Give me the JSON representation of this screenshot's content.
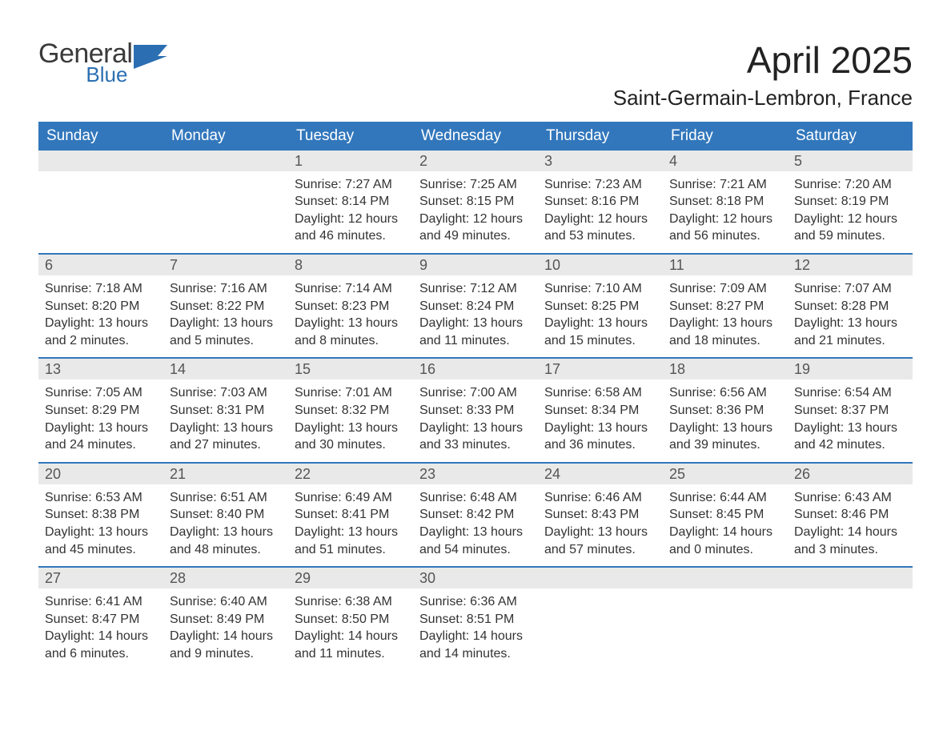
{
  "logo": {
    "line1": "General",
    "line2": "Blue",
    "text_color": "#3a3a3a",
    "accent_color": "#2b6fb2"
  },
  "header": {
    "month_title": "April 2025",
    "location": "Saint-Germain-Lembron, France"
  },
  "colors": {
    "header_bg": "#3277bc",
    "header_text": "#ffffff",
    "daynum_bg": "#e9e9e9",
    "week_border": "#3277bc",
    "body_text": "#333333",
    "page_bg": "#ffffff"
  },
  "weekdays": [
    "Sunday",
    "Monday",
    "Tuesday",
    "Wednesday",
    "Thursday",
    "Friday",
    "Saturday"
  ],
  "weeks": [
    [
      {
        "day": "",
        "sunrise": "",
        "sunset": "",
        "daylight": ""
      },
      {
        "day": "",
        "sunrise": "",
        "sunset": "",
        "daylight": ""
      },
      {
        "day": "1",
        "sunrise": "Sunrise: 7:27 AM",
        "sunset": "Sunset: 8:14 PM",
        "daylight": "Daylight: 12 hours and 46 minutes."
      },
      {
        "day": "2",
        "sunrise": "Sunrise: 7:25 AM",
        "sunset": "Sunset: 8:15 PM",
        "daylight": "Daylight: 12 hours and 49 minutes."
      },
      {
        "day": "3",
        "sunrise": "Sunrise: 7:23 AM",
        "sunset": "Sunset: 8:16 PM",
        "daylight": "Daylight: 12 hours and 53 minutes."
      },
      {
        "day": "4",
        "sunrise": "Sunrise: 7:21 AM",
        "sunset": "Sunset: 8:18 PM",
        "daylight": "Daylight: 12 hours and 56 minutes."
      },
      {
        "day": "5",
        "sunrise": "Sunrise: 7:20 AM",
        "sunset": "Sunset: 8:19 PM",
        "daylight": "Daylight: 12 hours and 59 minutes."
      }
    ],
    [
      {
        "day": "6",
        "sunrise": "Sunrise: 7:18 AM",
        "sunset": "Sunset: 8:20 PM",
        "daylight": "Daylight: 13 hours and 2 minutes."
      },
      {
        "day": "7",
        "sunrise": "Sunrise: 7:16 AM",
        "sunset": "Sunset: 8:22 PM",
        "daylight": "Daylight: 13 hours and 5 minutes."
      },
      {
        "day": "8",
        "sunrise": "Sunrise: 7:14 AM",
        "sunset": "Sunset: 8:23 PM",
        "daylight": "Daylight: 13 hours and 8 minutes."
      },
      {
        "day": "9",
        "sunrise": "Sunrise: 7:12 AM",
        "sunset": "Sunset: 8:24 PM",
        "daylight": "Daylight: 13 hours and 11 minutes."
      },
      {
        "day": "10",
        "sunrise": "Sunrise: 7:10 AM",
        "sunset": "Sunset: 8:25 PM",
        "daylight": "Daylight: 13 hours and 15 minutes."
      },
      {
        "day": "11",
        "sunrise": "Sunrise: 7:09 AM",
        "sunset": "Sunset: 8:27 PM",
        "daylight": "Daylight: 13 hours and 18 minutes."
      },
      {
        "day": "12",
        "sunrise": "Sunrise: 7:07 AM",
        "sunset": "Sunset: 8:28 PM",
        "daylight": "Daylight: 13 hours and 21 minutes."
      }
    ],
    [
      {
        "day": "13",
        "sunrise": "Sunrise: 7:05 AM",
        "sunset": "Sunset: 8:29 PM",
        "daylight": "Daylight: 13 hours and 24 minutes."
      },
      {
        "day": "14",
        "sunrise": "Sunrise: 7:03 AM",
        "sunset": "Sunset: 8:31 PM",
        "daylight": "Daylight: 13 hours and 27 minutes."
      },
      {
        "day": "15",
        "sunrise": "Sunrise: 7:01 AM",
        "sunset": "Sunset: 8:32 PM",
        "daylight": "Daylight: 13 hours and 30 minutes."
      },
      {
        "day": "16",
        "sunrise": "Sunrise: 7:00 AM",
        "sunset": "Sunset: 8:33 PM",
        "daylight": "Daylight: 13 hours and 33 minutes."
      },
      {
        "day": "17",
        "sunrise": "Sunrise: 6:58 AM",
        "sunset": "Sunset: 8:34 PM",
        "daylight": "Daylight: 13 hours and 36 minutes."
      },
      {
        "day": "18",
        "sunrise": "Sunrise: 6:56 AM",
        "sunset": "Sunset: 8:36 PM",
        "daylight": "Daylight: 13 hours and 39 minutes."
      },
      {
        "day": "19",
        "sunrise": "Sunrise: 6:54 AM",
        "sunset": "Sunset: 8:37 PM",
        "daylight": "Daylight: 13 hours and 42 minutes."
      }
    ],
    [
      {
        "day": "20",
        "sunrise": "Sunrise: 6:53 AM",
        "sunset": "Sunset: 8:38 PM",
        "daylight": "Daylight: 13 hours and 45 minutes."
      },
      {
        "day": "21",
        "sunrise": "Sunrise: 6:51 AM",
        "sunset": "Sunset: 8:40 PM",
        "daylight": "Daylight: 13 hours and 48 minutes."
      },
      {
        "day": "22",
        "sunrise": "Sunrise: 6:49 AM",
        "sunset": "Sunset: 8:41 PM",
        "daylight": "Daylight: 13 hours and 51 minutes."
      },
      {
        "day": "23",
        "sunrise": "Sunrise: 6:48 AM",
        "sunset": "Sunset: 8:42 PM",
        "daylight": "Daylight: 13 hours and 54 minutes."
      },
      {
        "day": "24",
        "sunrise": "Sunrise: 6:46 AM",
        "sunset": "Sunset: 8:43 PM",
        "daylight": "Daylight: 13 hours and 57 minutes."
      },
      {
        "day": "25",
        "sunrise": "Sunrise: 6:44 AM",
        "sunset": "Sunset: 8:45 PM",
        "daylight": "Daylight: 14 hours and 0 minutes."
      },
      {
        "day": "26",
        "sunrise": "Sunrise: 6:43 AM",
        "sunset": "Sunset: 8:46 PM",
        "daylight": "Daylight: 14 hours and 3 minutes."
      }
    ],
    [
      {
        "day": "27",
        "sunrise": "Sunrise: 6:41 AM",
        "sunset": "Sunset: 8:47 PM",
        "daylight": "Daylight: 14 hours and 6 minutes."
      },
      {
        "day": "28",
        "sunrise": "Sunrise: 6:40 AM",
        "sunset": "Sunset: 8:49 PM",
        "daylight": "Daylight: 14 hours and 9 minutes."
      },
      {
        "day": "29",
        "sunrise": "Sunrise: 6:38 AM",
        "sunset": "Sunset: 8:50 PM",
        "daylight": "Daylight: 14 hours and 11 minutes."
      },
      {
        "day": "30",
        "sunrise": "Sunrise: 6:36 AM",
        "sunset": "Sunset: 8:51 PM",
        "daylight": "Daylight: 14 hours and 14 minutes."
      },
      {
        "day": "",
        "sunrise": "",
        "sunset": "",
        "daylight": ""
      },
      {
        "day": "",
        "sunrise": "",
        "sunset": "",
        "daylight": ""
      },
      {
        "day": "",
        "sunrise": "",
        "sunset": "",
        "daylight": ""
      }
    ]
  ]
}
